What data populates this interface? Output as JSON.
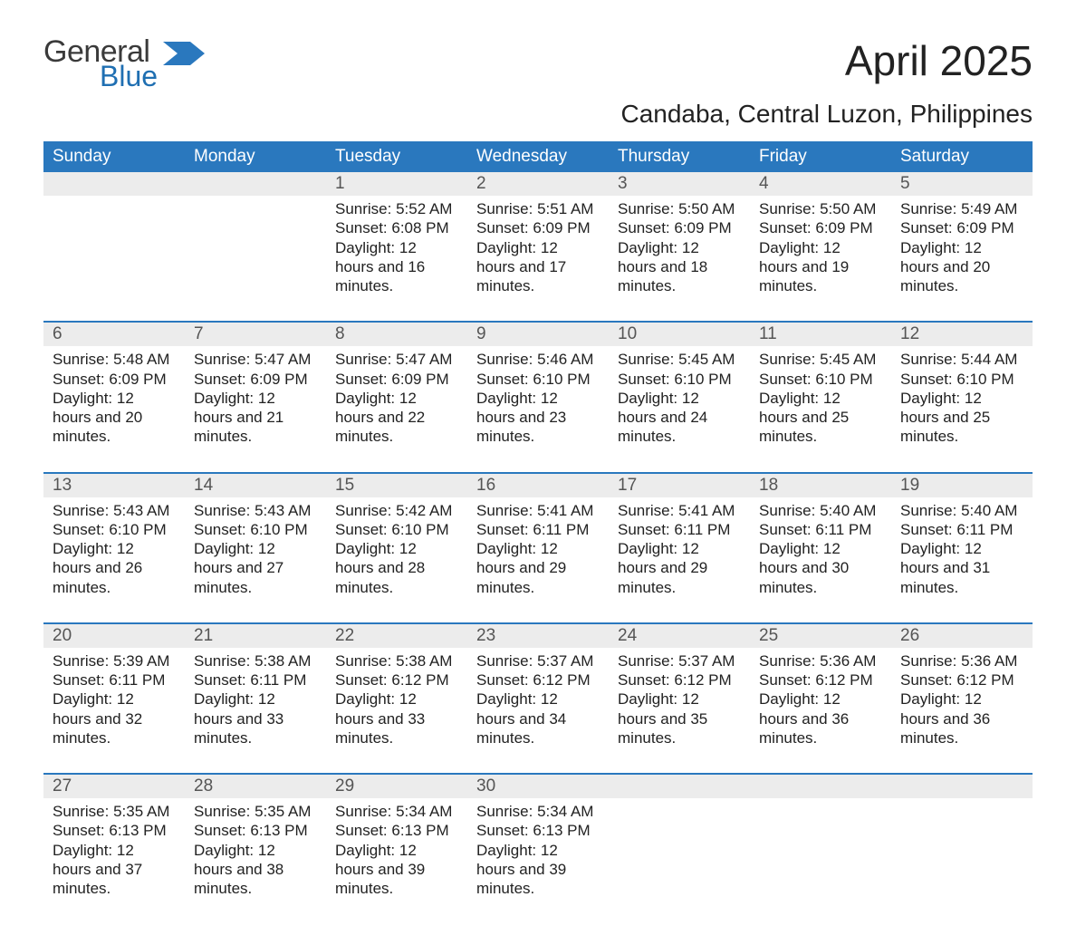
{
  "logo": {
    "word1": "General",
    "word2": "Blue",
    "color_general": "#3a3a3a",
    "color_blue": "#1f6fb2",
    "flag_color": "#2a78be"
  },
  "title": "April 2025",
  "location": "Candaba, Central Luzon, Philippines",
  "colors": {
    "header_bg": "#2a78be",
    "header_text": "#ffffff",
    "daynum_bg": "#ececec",
    "daynum_text": "#555555",
    "body_text": "#222222",
    "week_border": "#2a78be",
    "page_bg": "#ffffff"
  },
  "typography": {
    "title_fontsize": 46,
    "location_fontsize": 28,
    "weekday_fontsize": 19,
    "daynum_fontsize": 19,
    "content_fontsize": 17,
    "font_family": "Arial"
  },
  "weekdays": [
    "Sunday",
    "Monday",
    "Tuesday",
    "Wednesday",
    "Thursday",
    "Friday",
    "Saturday"
  ],
  "labels": {
    "sunrise": "Sunrise",
    "sunset": "Sunset",
    "daylight": "Daylight"
  },
  "weeks": [
    {
      "days": [
        {
          "n": "",
          "sunrise": "",
          "sunset": "",
          "daylight": ""
        },
        {
          "n": "",
          "sunrise": "",
          "sunset": "",
          "daylight": ""
        },
        {
          "n": "1",
          "sunrise": "5:52 AM",
          "sunset": "6:08 PM",
          "daylight": "12 hours and 16 minutes."
        },
        {
          "n": "2",
          "sunrise": "5:51 AM",
          "sunset": "6:09 PM",
          "daylight": "12 hours and 17 minutes."
        },
        {
          "n": "3",
          "sunrise": "5:50 AM",
          "sunset": "6:09 PM",
          "daylight": "12 hours and 18 minutes."
        },
        {
          "n": "4",
          "sunrise": "5:50 AM",
          "sunset": "6:09 PM",
          "daylight": "12 hours and 19 minutes."
        },
        {
          "n": "5",
          "sunrise": "5:49 AM",
          "sunset": "6:09 PM",
          "daylight": "12 hours and 20 minutes."
        }
      ]
    },
    {
      "days": [
        {
          "n": "6",
          "sunrise": "5:48 AM",
          "sunset": "6:09 PM",
          "daylight": "12 hours and 20 minutes."
        },
        {
          "n": "7",
          "sunrise": "5:47 AM",
          "sunset": "6:09 PM",
          "daylight": "12 hours and 21 minutes."
        },
        {
          "n": "8",
          "sunrise": "5:47 AM",
          "sunset": "6:09 PM",
          "daylight": "12 hours and 22 minutes."
        },
        {
          "n": "9",
          "sunrise": "5:46 AM",
          "sunset": "6:10 PM",
          "daylight": "12 hours and 23 minutes."
        },
        {
          "n": "10",
          "sunrise": "5:45 AM",
          "sunset": "6:10 PM",
          "daylight": "12 hours and 24 minutes."
        },
        {
          "n": "11",
          "sunrise": "5:45 AM",
          "sunset": "6:10 PM",
          "daylight": "12 hours and 25 minutes."
        },
        {
          "n": "12",
          "sunrise": "5:44 AM",
          "sunset": "6:10 PM",
          "daylight": "12 hours and 25 minutes."
        }
      ]
    },
    {
      "days": [
        {
          "n": "13",
          "sunrise": "5:43 AM",
          "sunset": "6:10 PM",
          "daylight": "12 hours and 26 minutes."
        },
        {
          "n": "14",
          "sunrise": "5:43 AM",
          "sunset": "6:10 PM",
          "daylight": "12 hours and 27 minutes."
        },
        {
          "n": "15",
          "sunrise": "5:42 AM",
          "sunset": "6:10 PM",
          "daylight": "12 hours and 28 minutes."
        },
        {
          "n": "16",
          "sunrise": "5:41 AM",
          "sunset": "6:11 PM",
          "daylight": "12 hours and 29 minutes."
        },
        {
          "n": "17",
          "sunrise": "5:41 AM",
          "sunset": "6:11 PM",
          "daylight": "12 hours and 29 minutes."
        },
        {
          "n": "18",
          "sunrise": "5:40 AM",
          "sunset": "6:11 PM",
          "daylight": "12 hours and 30 minutes."
        },
        {
          "n": "19",
          "sunrise": "5:40 AM",
          "sunset": "6:11 PM",
          "daylight": "12 hours and 31 minutes."
        }
      ]
    },
    {
      "days": [
        {
          "n": "20",
          "sunrise": "5:39 AM",
          "sunset": "6:11 PM",
          "daylight": "12 hours and 32 minutes."
        },
        {
          "n": "21",
          "sunrise": "5:38 AM",
          "sunset": "6:11 PM",
          "daylight": "12 hours and 33 minutes."
        },
        {
          "n": "22",
          "sunrise": "5:38 AM",
          "sunset": "6:12 PM",
          "daylight": "12 hours and 33 minutes."
        },
        {
          "n": "23",
          "sunrise": "5:37 AM",
          "sunset": "6:12 PM",
          "daylight": "12 hours and 34 minutes."
        },
        {
          "n": "24",
          "sunrise": "5:37 AM",
          "sunset": "6:12 PM",
          "daylight": "12 hours and 35 minutes."
        },
        {
          "n": "25",
          "sunrise": "5:36 AM",
          "sunset": "6:12 PM",
          "daylight": "12 hours and 36 minutes."
        },
        {
          "n": "26",
          "sunrise": "5:36 AM",
          "sunset": "6:12 PM",
          "daylight": "12 hours and 36 minutes."
        }
      ]
    },
    {
      "days": [
        {
          "n": "27",
          "sunrise": "5:35 AM",
          "sunset": "6:13 PM",
          "daylight": "12 hours and 37 minutes."
        },
        {
          "n": "28",
          "sunrise": "5:35 AM",
          "sunset": "6:13 PM",
          "daylight": "12 hours and 38 minutes."
        },
        {
          "n": "29",
          "sunrise": "5:34 AM",
          "sunset": "6:13 PM",
          "daylight": "12 hours and 39 minutes."
        },
        {
          "n": "30",
          "sunrise": "5:34 AM",
          "sunset": "6:13 PM",
          "daylight": "12 hours and 39 minutes."
        },
        {
          "n": "",
          "sunrise": "",
          "sunset": "",
          "daylight": ""
        },
        {
          "n": "",
          "sunrise": "",
          "sunset": "",
          "daylight": ""
        },
        {
          "n": "",
          "sunrise": "",
          "sunset": "",
          "daylight": ""
        }
      ]
    }
  ]
}
